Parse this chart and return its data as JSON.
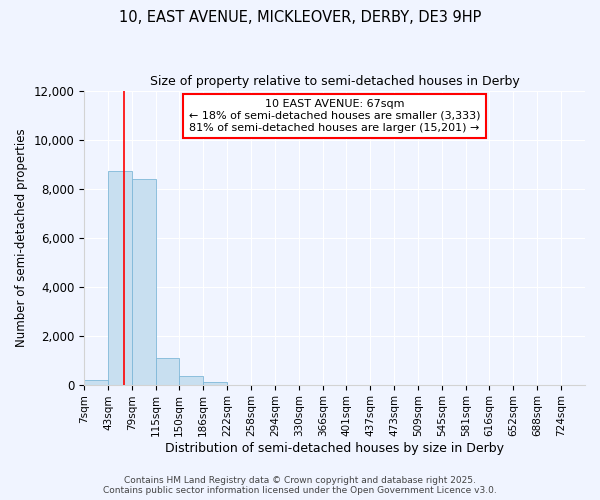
{
  "title1": "10, EAST AVENUE, MICKLEOVER, DERBY, DE3 9HP",
  "title2": "Size of property relative to semi-detached houses in Derby",
  "xlabel": "Distribution of semi-detached houses by size in Derby",
  "ylabel": "Number of semi-detached properties",
  "annotation_line1": "10 EAST AVENUE: 67sqm",
  "annotation_line2": "← 18% of semi-detached houses are smaller (3,333)",
  "annotation_line3": "81% of semi-detached houses are larger (15,201) →",
  "bin_labels": [
    "7sqm",
    "43sqm",
    "79sqm",
    "115sqm",
    "150sqm",
    "186sqm",
    "222sqm",
    "258sqm",
    "294sqm",
    "330sqm",
    "366sqm",
    "401sqm",
    "437sqm",
    "473sqm",
    "509sqm",
    "545sqm",
    "581sqm",
    "616sqm",
    "652sqm",
    "688sqm",
    "724sqm"
  ],
  "bin_edges": [
    7,
    43,
    79,
    115,
    150,
    186,
    222,
    258,
    294,
    330,
    366,
    401,
    437,
    473,
    509,
    545,
    581,
    616,
    652,
    688,
    724,
    760
  ],
  "bar_heights": [
    200,
    8700,
    8400,
    1100,
    350,
    100,
    0,
    0,
    0,
    0,
    0,
    0,
    0,
    0,
    0,
    0,
    0,
    0,
    0,
    0,
    0
  ],
  "bar_color": "#c8dff0",
  "bar_edge_color": "#7fb8d8",
  "red_line_x": 67,
  "ylim": [
    0,
    12000
  ],
  "yticks": [
    0,
    2000,
    4000,
    6000,
    8000,
    10000,
    12000
  ],
  "footer1": "Contains HM Land Registry data © Crown copyright and database right 2025.",
  "footer2": "Contains public sector information licensed under the Open Government Licence v3.0.",
  "bg_color": "#f0f4ff"
}
